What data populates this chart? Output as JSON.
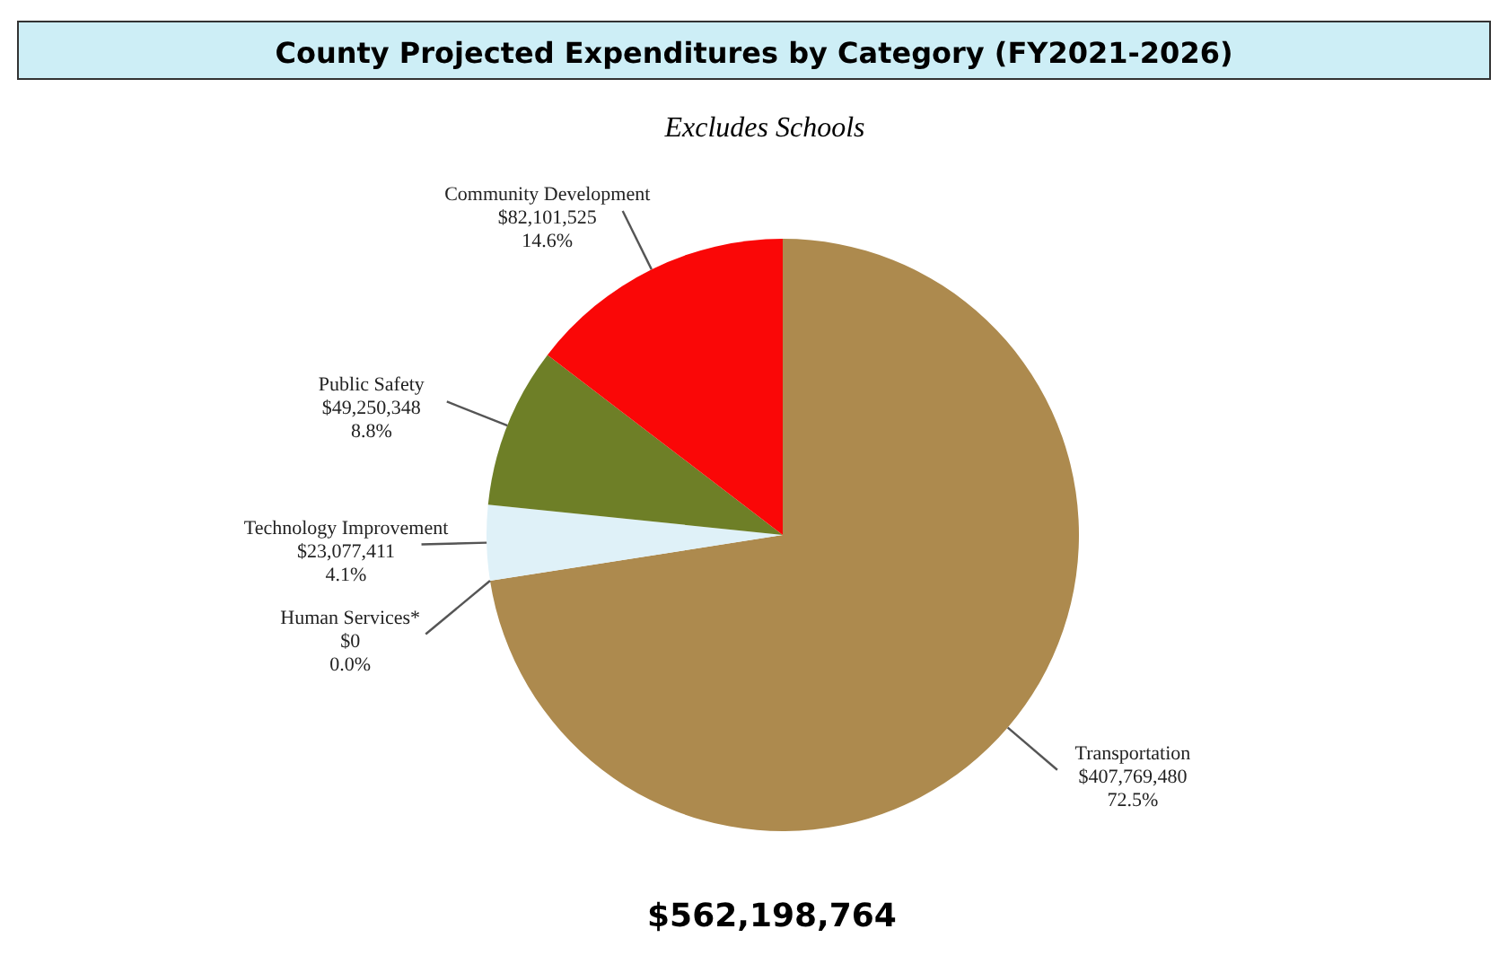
{
  "chart_data": {
    "type": "pie",
    "title": "County Projected Expenditures by Category (FY2021-2026)",
    "subtitle": "Excludes Schools",
    "categories": [
      "Transportation",
      "Human Services*",
      "Technology Improvement",
      "Public Safety",
      "Community Development"
    ],
    "values": [
      407769480,
      0,
      23077411,
      49250348,
      82101525
    ],
    "colors": [
      "#ad8a4e",
      "#5b7db5",
      "#dff1f8",
      "#6e7f27",
      "#fa0707"
    ],
    "value_labels": [
      "$407,769,480\n72.5%",
      "$0\n0.0%",
      "$23,077,411\n4.1%",
      "$49,250,348\n8.8%",
      "$82,101,525\n14.6%"
    ],
    "annotations": [
      "$562,198,764"
    ]
  }
}
